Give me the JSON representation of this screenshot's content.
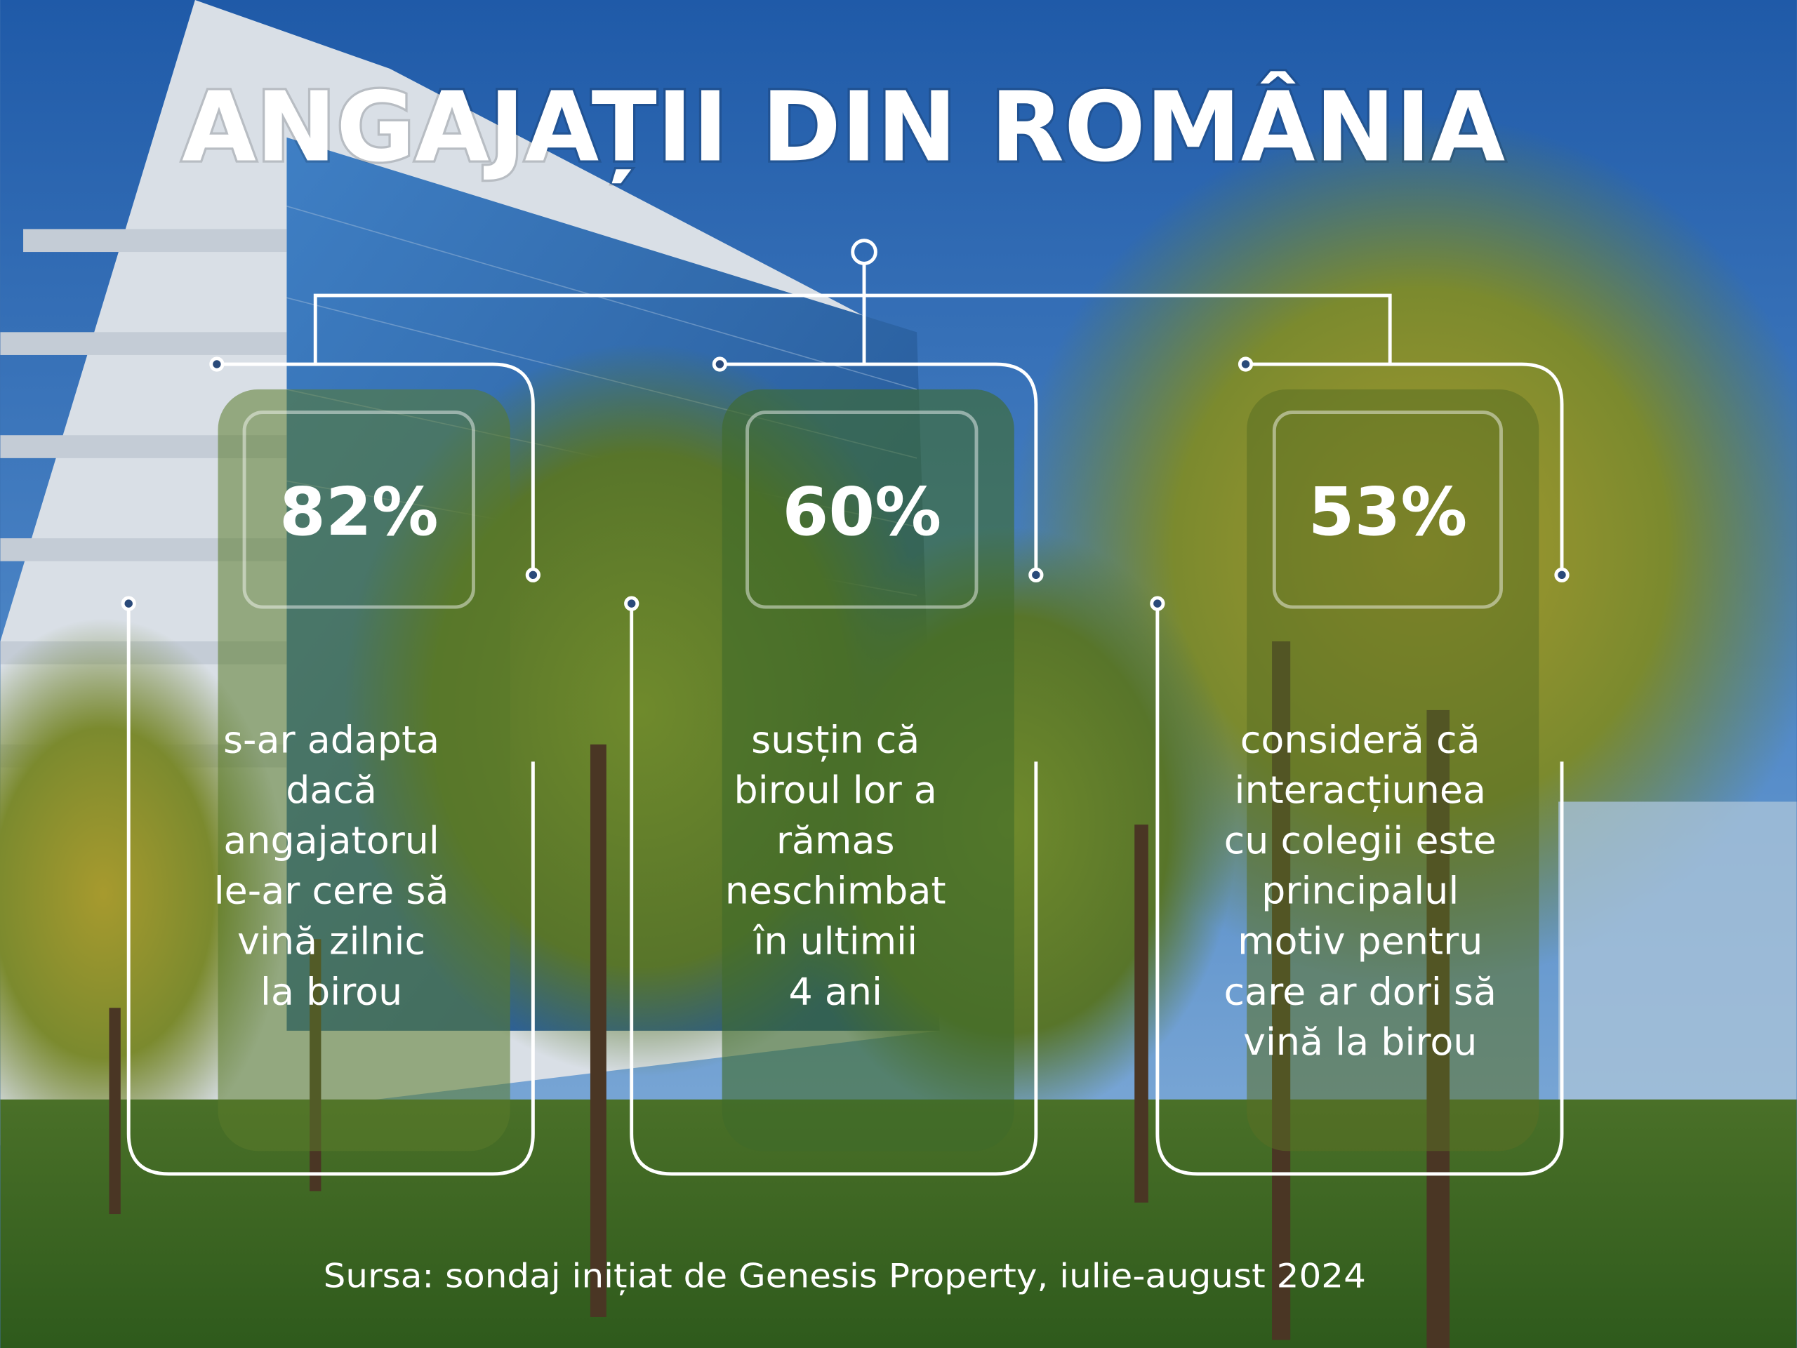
{
  "title": "ANGAJAȚII DIN ROMÂNIA",
  "stats": [
    {
      "percent": "82%",
      "lines": [
        "s-ar adapta",
        "dacă",
        "angajatorul",
        "le-ar cere să",
        "vină zilnic",
        "la birou"
      ]
    },
    {
      "percent": "60%",
      "lines": [
        "susțin că",
        "biroul lor a",
        "rămas",
        "neschimbat",
        "în ultimii",
        "4 ani"
      ]
    },
    {
      "percent": "53%",
      "lines": [
        "consideră că",
        "interacțiunea",
        "cu colegii este",
        "principalul",
        "motiv pentru",
        "care ar dori să",
        "vină la birou"
      ]
    }
  ],
  "source": "Sursa: sondaj inițiat de Genesis Property, iulie-august 2024",
  "colors": {
    "panel": "#5a7a2a",
    "text": "#ffffff",
    "sky": "#2f6bb5"
  }
}
